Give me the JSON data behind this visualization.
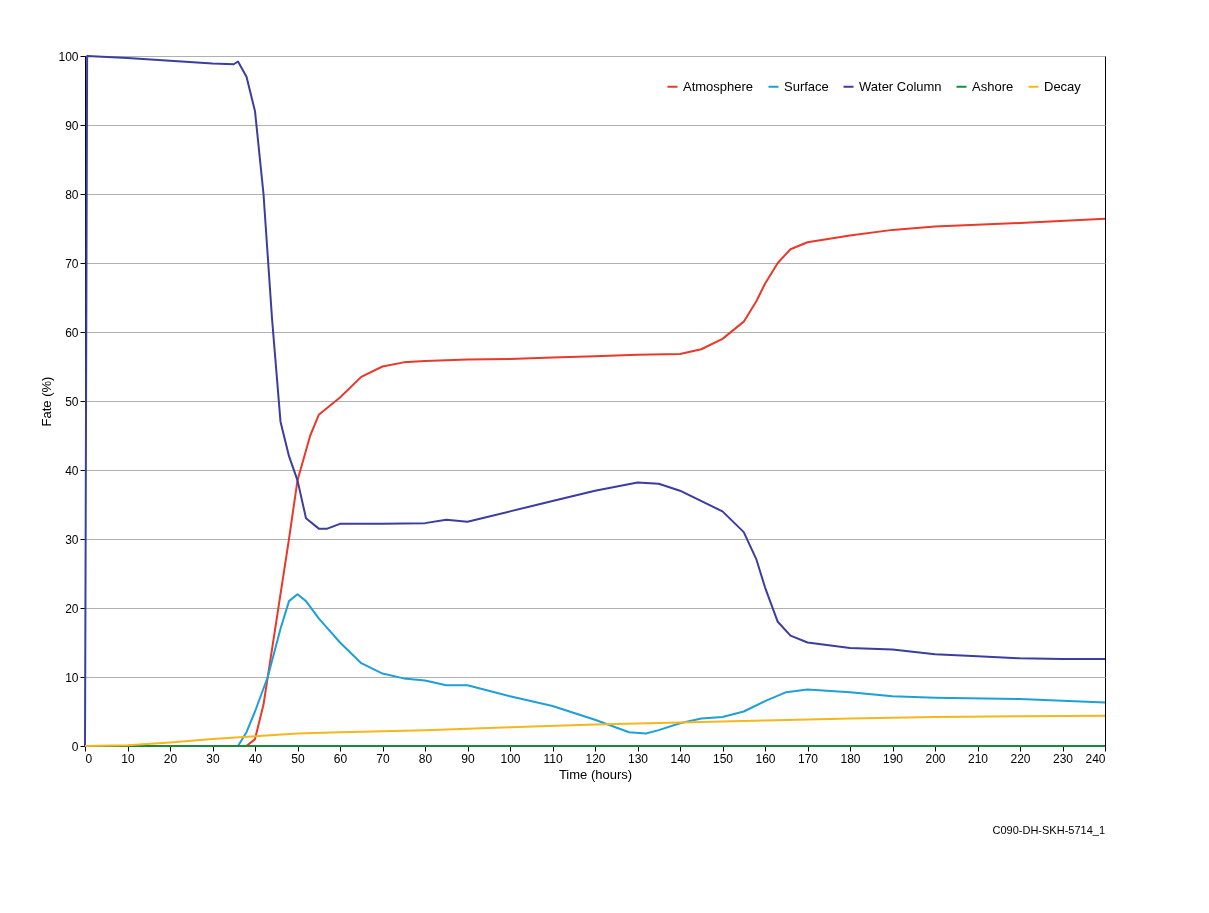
{
  "chart_data": {
    "type": "line",
    "xlabel": "Time (hours)",
    "ylabel": "Fate (%)",
    "xlim": [
      0,
      240
    ],
    "xticks": [
      0,
      10,
      20,
      30,
      40,
      50,
      60,
      70,
      80,
      90,
      100,
      110,
      120,
      130,
      140,
      150,
      160,
      170,
      180,
      190,
      200,
      210,
      220,
      230,
      240
    ],
    "ylim": [
      0,
      100
    ],
    "yticks": [
      0,
      10,
      20,
      30,
      40,
      50,
      60,
      70,
      80,
      90,
      100
    ],
    "grid": "y",
    "legend": "top right",
    "marker": "none",
    "line_style": "solid",
    "annotations": [
      "C090-DH-SKH-5714_1"
    ],
    "series": [
      {
        "name": "Atmosphere",
        "color": "#e8392a",
        "x": [
          0,
          38,
          40,
          42,
          44,
          46,
          48,
          50,
          53,
          55,
          60,
          65,
          70,
          75,
          80,
          90,
          100,
          110,
          120,
          130,
          140,
          145,
          150,
          155,
          158,
          160,
          163,
          166,
          170,
          180,
          190,
          200,
          220,
          240
        ],
        "values": [
          0,
          0,
          1,
          6,
          14,
          22,
          30,
          38.5,
          45,
          48,
          50.5,
          53.5,
          55,
          55.6,
          55.8,
          56,
          56.1,
          56.3,
          56.5,
          56.7,
          56.8,
          57.5,
          59,
          61.5,
          64.5,
          67,
          70,
          72,
          73,
          74,
          74.8,
          75.3,
          75.8,
          76.4
        ]
      },
      {
        "name": "Surface",
        "color": "#1ea0d6",
        "x": [
          0,
          36,
          38,
          40,
          43,
          46,
          48,
          50,
          52,
          55,
          60,
          65,
          70,
          75,
          80,
          85,
          90,
          95,
          100,
          110,
          120,
          128,
          132,
          135,
          140,
          145,
          150,
          155,
          160,
          165,
          170,
          180,
          190,
          200,
          220,
          240
        ],
        "values": [
          0,
          0,
          2,
          5,
          10,
          17,
          21,
          22,
          21,
          18.5,
          15,
          12,
          10.5,
          9.8,
          9.5,
          8.8,
          8.8,
          8,
          7.2,
          5.8,
          3.8,
          2,
          1.8,
          2.3,
          3.3,
          4,
          4.2,
          5,
          6.5,
          7.8,
          8.2,
          7.8,
          7.2,
          7,
          6.8,
          6.3
        ]
      },
      {
        "name": "Water Column",
        "color": "#3b3da0",
        "x": [
          0,
          0.5,
          10,
          20,
          30,
          35,
          36,
          38,
          40,
          42,
          44,
          46,
          48,
          50,
          52,
          55,
          57,
          60,
          70,
          80,
          85,
          90,
          100,
          110,
          120,
          130,
          135,
          140,
          150,
          155,
          158,
          160,
          163,
          166,
          170,
          180,
          190,
          200,
          210,
          220,
          230,
          240
        ],
        "values": [
          0,
          100,
          99.7,
          99.3,
          98.9,
          98.8,
          99.2,
          97,
          92,
          80,
          62,
          47,
          42,
          38.5,
          33,
          31.5,
          31.5,
          32.2,
          32.2,
          32.3,
          32.8,
          32.5,
          34,
          35.5,
          37,
          38.2,
          38,
          37,
          34,
          31,
          27,
          23,
          18,
          16,
          15,
          14.2,
          14,
          13.3,
          13,
          12.7,
          12.6,
          12.6
        ]
      },
      {
        "name": "Ashore",
        "color": "#1a8a3a",
        "x": [
          0,
          240
        ],
        "values": [
          0,
          0
        ]
      },
      {
        "name": "Decay",
        "color": "#f5b61e",
        "x": [
          0,
          10,
          20,
          30,
          40,
          50,
          60,
          80,
          100,
          120,
          140,
          160,
          180,
          200,
          220,
          240
        ],
        "values": [
          0,
          0.1,
          0.5,
          1,
          1.4,
          1.8,
          2,
          2.3,
          2.7,
          3.1,
          3.4,
          3.7,
          4,
          4.2,
          4.3,
          4.4
        ]
      }
    ]
  }
}
